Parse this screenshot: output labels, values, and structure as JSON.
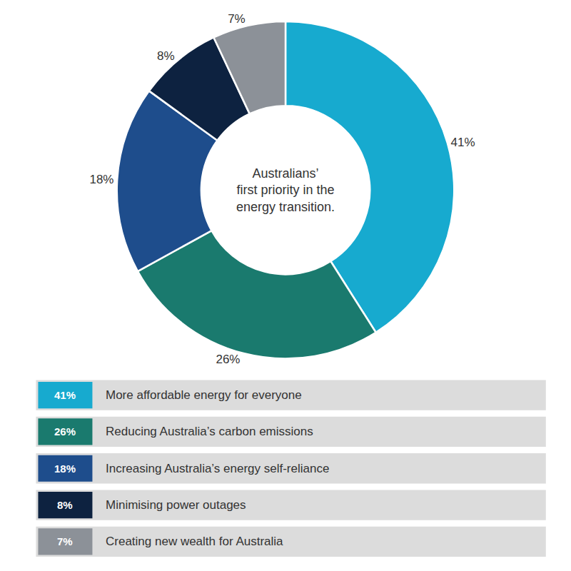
{
  "chart_data": {
    "type": "pie",
    "categories": [
      "More affordable energy for everyone",
      "Reducing Australia’s carbon emissions",
      "Increasing Australia’s energy self-reliance",
      "Minimising power outages",
      "Creating new wealth for Australia"
    ],
    "values": [
      41,
      26,
      18,
      8,
      7
    ],
    "value_labels": [
      "41%",
      "26%",
      "18%",
      "8%",
      "7%"
    ],
    "colors": [
      "#17AACF",
      "#1A7A6E",
      "#1E4D8C",
      "#0D2240",
      "#8C9198"
    ],
    "data_labels": true,
    "annotations": [
      "Australians’",
      "first priority in the",
      "energy transition."
    ],
    "legend": "bottom"
  }
}
